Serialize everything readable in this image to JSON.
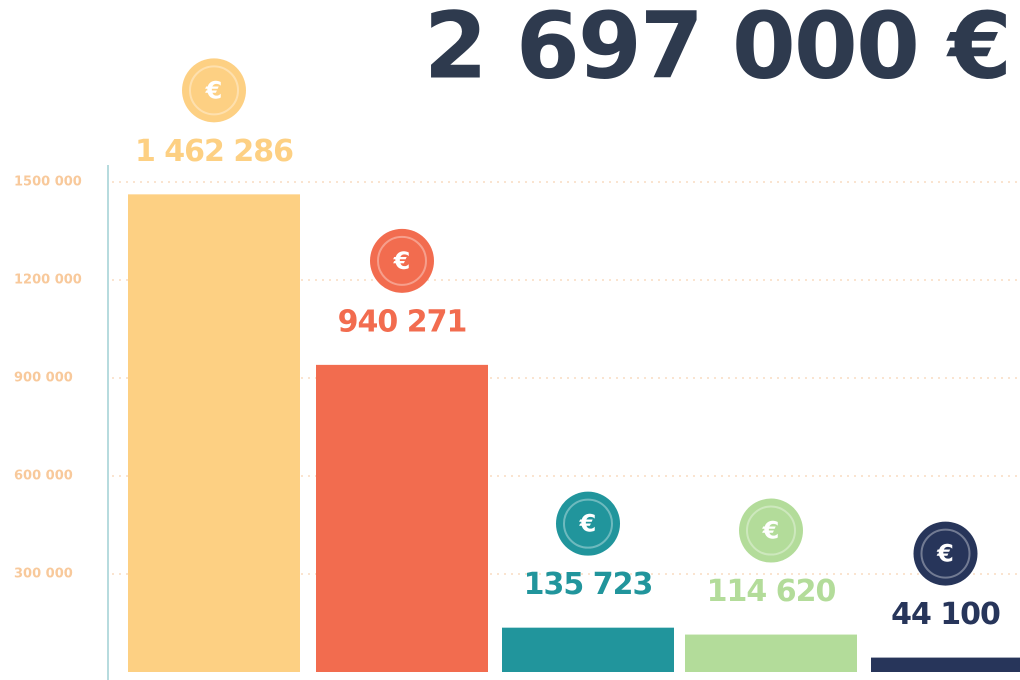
{
  "chart_data": {
    "type": "bar",
    "title": "2 697 000 €",
    "icon_label": "€",
    "values": [
      1462286,
      940271,
      135723,
      114620,
      44100
    ],
    "value_labels": [
      "1 462 286",
      "940 271",
      "135 723",
      "114 620",
      "44 100"
    ],
    "colors": [
      "#fdd083",
      "#f26c4f",
      "#21959c",
      "#b3dc9a",
      "#27355a"
    ],
    "ylim": [
      0,
      1550000
    ],
    "yticks": [
      {
        "value": 300000,
        "label": "300 000"
      },
      {
        "value": 600000,
        "label": "600 000"
      },
      {
        "value": 900000,
        "label": "900 000"
      },
      {
        "value": 1200000,
        "label": "1200 000"
      },
      {
        "value": 1500000,
        "label": "1500 000"
      }
    ],
    "grid": true
  }
}
